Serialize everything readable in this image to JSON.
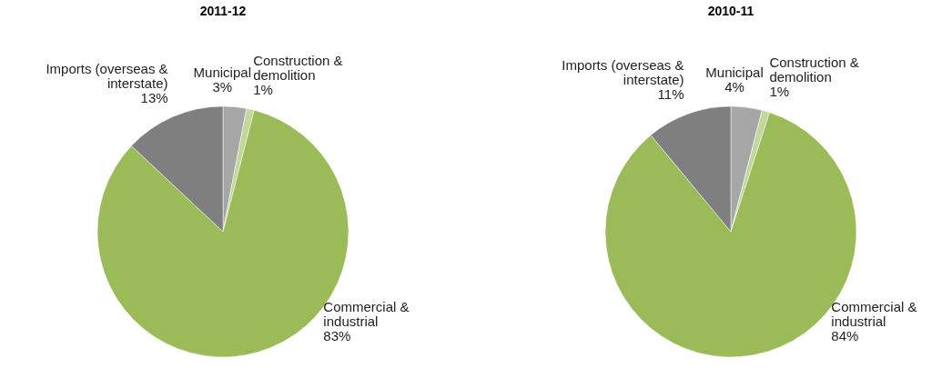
{
  "chart_data": [
    {
      "type": "pie",
      "title": "2011-12",
      "categories": [
        "Municipal",
        "Construction & demolition",
        "Commercial & industrial",
        "Imports (overseas & interstate)"
      ],
      "values": [
        3,
        1,
        83,
        13
      ],
      "colors": [
        "#a6a6a6",
        "#c3d69b",
        "#9bbb59",
        "#7f7f7f"
      ],
      "value_labels": [
        "3%",
        "1%",
        "83%",
        "13%"
      ]
    },
    {
      "type": "pie",
      "title": "2010-11",
      "categories": [
        "Municipal",
        "Construction & demolition",
        "Commercial & industrial",
        "Imports (overseas & interstate)"
      ],
      "values": [
        4,
        1,
        84,
        11
      ],
      "colors": [
        "#a6a6a6",
        "#c3d69b",
        "#9bbb59",
        "#7f7f7f"
      ],
      "value_labels": [
        "4%",
        "1%",
        "84%",
        "11%"
      ]
    }
  ]
}
